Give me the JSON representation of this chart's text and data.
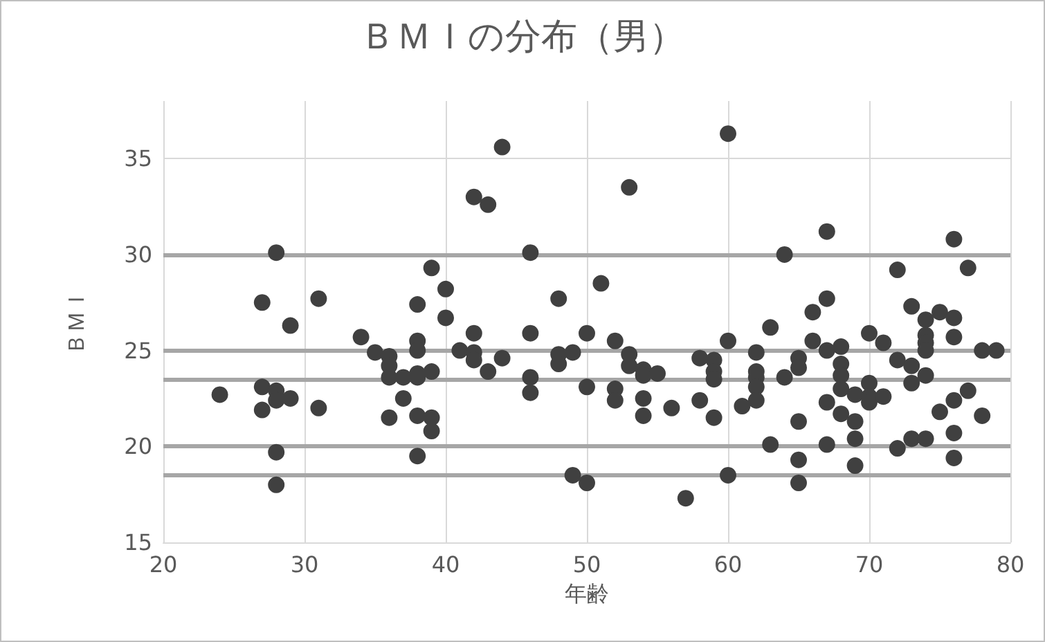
{
  "chart_data": {
    "type": "scatter",
    "title": "ＢＭＩの分布（男）",
    "xlabel": "年齢",
    "ylabel": "ＢＭＩ",
    "xlim": [
      20,
      80
    ],
    "xticks": [
      20,
      30,
      40,
      50,
      60,
      70,
      80
    ],
    "ylim": [
      15,
      38
    ],
    "yticks": [
      15,
      20,
      25,
      30,
      35
    ],
    "grid": true,
    "marker": "circle",
    "ref_lines": [
      {
        "axis": "y",
        "value": 30,
        "color": "#a6a6a6"
      },
      {
        "axis": "y",
        "value": 25,
        "color": "#a6a6a6"
      },
      {
        "axis": "y",
        "value": 23.5,
        "color": "#a6a6a6"
      },
      {
        "axis": "y",
        "value": 20,
        "color": "#a6a6a6"
      },
      {
        "axis": "y",
        "value": 18.5,
        "color": "#a6a6a6"
      }
    ],
    "series": [
      {
        "color": "#404040",
        "x": [
          28,
          27,
          31,
          29,
          34,
          39,
          40,
          38,
          40,
          38,
          38,
          35,
          36,
          36,
          36,
          37,
          38,
          38,
          39,
          41,
          24,
          27,
          28,
          28,
          29,
          27,
          31,
          37,
          36,
          38,
          39,
          39,
          28,
          38,
          28,
          44,
          42,
          43,
          53,
          60,
          46,
          51,
          48,
          42,
          42,
          42,
          43,
          44,
          46,
          46,
          46,
          48,
          48,
          49,
          50,
          50,
          49,
          50,
          52,
          52,
          52,
          53,
          53,
          54,
          54,
          55,
          54,
          54,
          56,
          57,
          58,
          59,
          59,
          59,
          58,
          59,
          60,
          60,
          61,
          64,
          67,
          63,
          62,
          62,
          62,
          62,
          62,
          64,
          65,
          65,
          65,
          65,
          65,
          63,
          66,
          67,
          66,
          67,
          68,
          68,
          68,
          68,
          67,
          68,
          69,
          69,
          69,
          69,
          67,
          70,
          70,
          70,
          70,
          71,
          71,
          72,
          72,
          72,
          73,
          73,
          73,
          74,
          74,
          74,
          74,
          74,
          73,
          74,
          75,
          75,
          76,
          76,
          76,
          76,
          76,
          76,
          77,
          77,
          78,
          78,
          79
        ],
        "values": [
          30.1,
          27.5,
          27.7,
          26.3,
          25.7,
          29.3,
          28.2,
          27.4,
          26.7,
          25.5,
          25.0,
          24.9,
          24.7,
          24.2,
          23.6,
          23.6,
          23.8,
          23.6,
          23.9,
          25.0,
          22.7,
          23.1,
          22.9,
          22.4,
          22.5,
          21.9,
          22.0,
          22.5,
          21.5,
          21.6,
          21.5,
          20.8,
          19.7,
          19.5,
          18.0,
          35.6,
          33.0,
          32.6,
          33.5,
          36.3,
          30.1,
          28.5,
          27.7,
          25.9,
          24.9,
          24.5,
          23.9,
          24.6,
          25.9,
          23.6,
          22.8,
          24.8,
          24.3,
          24.9,
          25.9,
          23.1,
          18.5,
          18.1,
          25.5,
          23.0,
          22.4,
          24.8,
          24.2,
          24.0,
          23.7,
          23.8,
          22.5,
          21.6,
          22.0,
          17.3,
          24.6,
          24.5,
          23.9,
          23.5,
          22.4,
          21.5,
          25.5,
          18.5,
          22.1,
          30.0,
          31.2,
          26.2,
          24.9,
          23.9,
          23.6,
          23.1,
          22.4,
          23.6,
          24.6,
          24.1,
          21.3,
          19.3,
          18.1,
          20.1,
          27.0,
          27.7,
          25.5,
          25.0,
          25.2,
          24.3,
          23.7,
          23.0,
          22.3,
          21.7,
          22.7,
          21.3,
          20.4,
          19.0,
          20.1,
          25.9,
          23.3,
          22.6,
          22.3,
          25.4,
          22.6,
          29.2,
          24.5,
          19.9,
          27.3,
          24.2,
          23.3,
          26.6,
          25.8,
          25.4,
          25.0,
          23.7,
          20.4,
          20.4,
          27.0,
          21.8,
          26.7,
          25.7,
          30.8,
          22.4,
          20.7,
          19.4,
          29.3,
          22.9,
          25.0,
          21.6,
          25.0
        ]
      }
    ]
  }
}
